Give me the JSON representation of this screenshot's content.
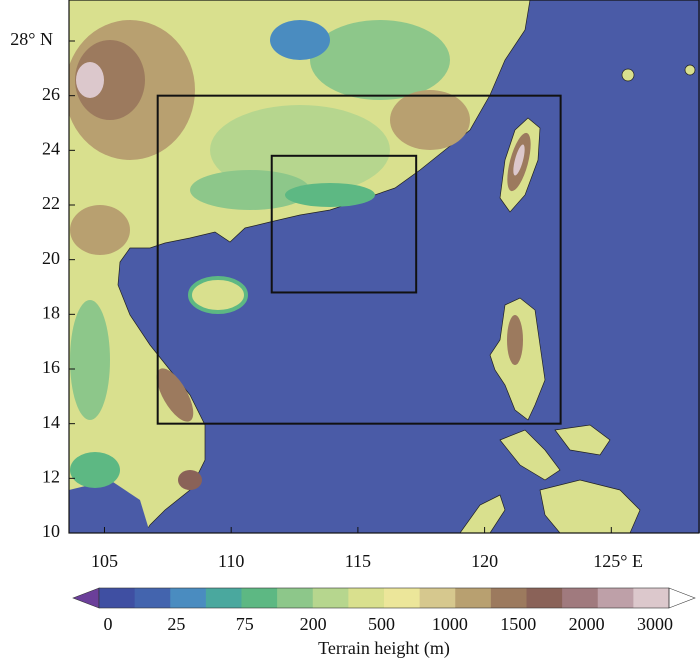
{
  "map": {
    "lonlim": [
      103.6,
      128.5
    ],
    "latlim": [
      10,
      29.5
    ],
    "lonticks": [
      105,
      110,
      115,
      120,
      {
        "value": 125,
        "label": "125° E"
      }
    ],
    "latticks": [
      10,
      12,
      14,
      16,
      18,
      20,
      22,
      24,
      26,
      {
        "value": 28,
        "label": "28° N"
      }
    ],
    "domains": [
      {
        "lon": [
          107.1,
          123.0
        ],
        "lat": [
          14.0,
          26.0
        ]
      },
      {
        "lon": [
          111.6,
          117.3
        ],
        "lat": [
          18.8,
          23.8
        ]
      }
    ],
    "ocean_color": "#4a5ba7"
  },
  "colorbar": {
    "colors": [
      "#6b3f9a",
      "#3f4fa2",
      "#4364ae",
      "#4a8cc0",
      "#4aa89e",
      "#5db883",
      "#8dc78a",
      "#b6d68e",
      "#d9e08e",
      "#ece69a",
      "#d6c88e",
      "#b8a070",
      "#9c7a5e",
      "#8a6258",
      "#a07a7e",
      "#bea0a8",
      "#dcc8cc",
      "#ffffff"
    ],
    "labels": [
      0,
      25,
      75,
      200,
      500,
      1000,
      1500,
      2000,
      3000
    ],
    "title": "Terrain height (m)"
  }
}
